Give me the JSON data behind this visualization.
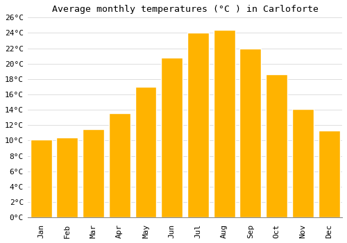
{
  "title": "Average monthly temperatures (°C ) in Carloforte",
  "months": [
    "Jan",
    "Feb",
    "Mar",
    "Apr",
    "May",
    "Jun",
    "Jul",
    "Aug",
    "Sep",
    "Oct",
    "Nov",
    "Dec"
  ],
  "values": [
    10.1,
    10.4,
    11.5,
    13.6,
    17.0,
    20.8,
    24.0,
    24.4,
    22.0,
    18.6,
    14.1,
    11.3
  ],
  "bar_color_top": "#FFB300",
  "bar_color_bottom": "#FFA000",
  "bar_edge_color": "#FFFFFF",
  "background_color": "#FFFFFF",
  "grid_color": "#DDDDDD",
  "title_fontsize": 9.5,
  "tick_fontsize": 8,
  "ylim": [
    0,
    26
  ],
  "yticks": [
    0,
    2,
    4,
    6,
    8,
    10,
    12,
    14,
    16,
    18,
    20,
    22,
    24,
    26
  ],
  "bar_width": 0.82
}
